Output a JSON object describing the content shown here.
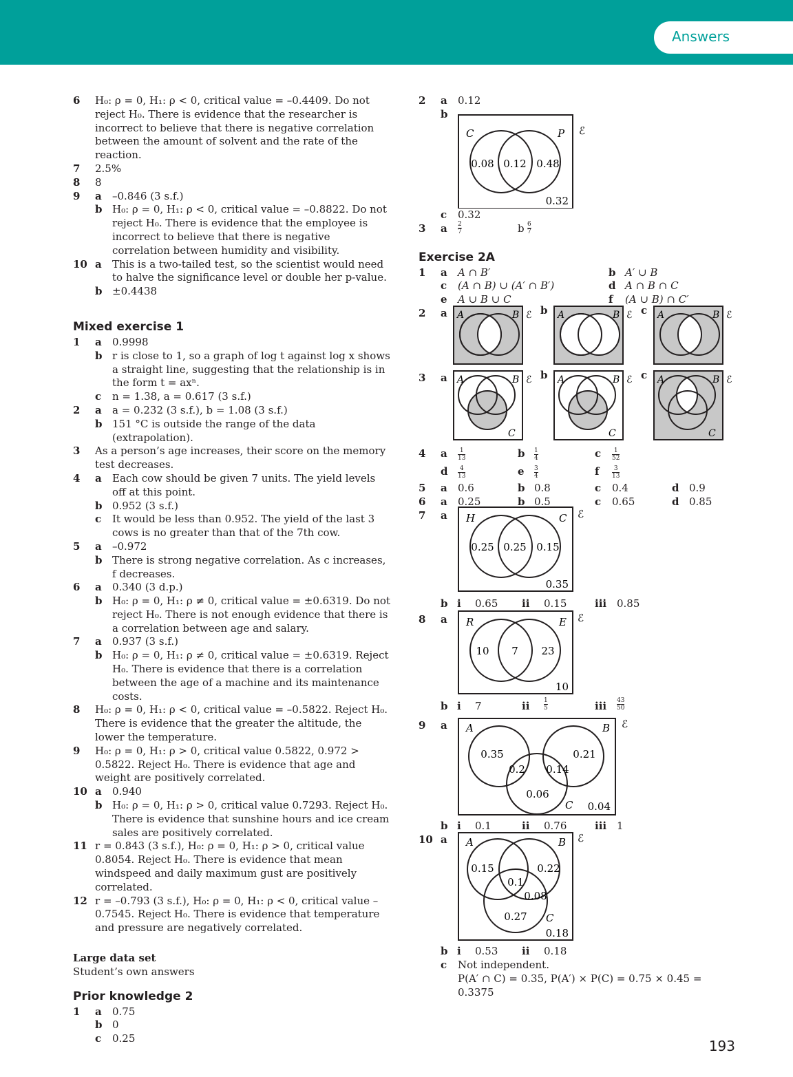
{
  "header": {
    "tab_label": "Answers",
    "band_color": "#00a09a"
  },
  "page_number": "193",
  "left": {
    "q6": "H₀: ρ = 0, H₁: ρ < 0, critical value = –0.4409. Do not reject H₀. There is evidence that the researcher is incorrect to believe that there is negative correlation between the amount of solvent and the rate of the reaction.",
    "q7": "2.5%",
    "q8": "8",
    "q9a": "–0.846 (3 s.f.)",
    "q9b": "H₀: ρ = 0, H₁: ρ < 0, critical value = –0.8822. Do not reject H₀. There is evidence that the employee is incorrect to believe that there is negative correlation between humidity and visibility.",
    "q10a": "This is a two-tailed test, so the scientist would need to halve the significance level or double her p-value.",
    "q10b": "±0.4438",
    "mixed_title": "Mixed exercise 1",
    "m1a": "0.9998",
    "m1b": "r is close to 1, so a graph of log t against log x shows a straight line, suggesting that the relationship is in the form t = axⁿ.",
    "m1c": "n = 1.38, a = 0.617 (3 s.f.)",
    "m2a": "a = 0.232 (3 s.f.), b = 1.08 (3 s.f.)",
    "m2b": "151 °C is outside the range of the data (extrapolation).",
    "m3": "As a person’s age increases, their score on the memory test decreases.",
    "m4a": "Each cow should be given 7 units. The yield levels off at this point.",
    "m4b": "0.952 (3 s.f.)",
    "m4c": "It would be less than 0.952. The yield of the last 3 cows is no greater than that of the 7th cow.",
    "m5a": "–0.972",
    "m5b": "There is strong negative correlation. As c increases, f decreases.",
    "m6a": "0.340 (3 d.p.)",
    "m6b": "H₀: ρ = 0, H₁: ρ ≠ 0, critical value = ±0.6319. Do not reject H₀. There is not enough evidence that there is a correlation between age and salary.",
    "m7a": "0.937 (3 s.f.)",
    "m7b": "H₀: ρ = 0, H₁: ρ ≠ 0, critical value = ±0.6319. Reject H₀. There is evidence that there is a correlation between the age of a machine and its maintenance costs.",
    "m8": "H₀: ρ = 0, H₁: ρ < 0, critical value = –0.5822. Reject H₀. There is evidence that the greater the altitude, the lower the temperature.",
    "m9": "H₀: ρ = 0, H₁: ρ > 0, critical value 0.5822, 0.972 > 0.5822. Reject H₀. There is evidence that age and weight are positively correlated.",
    "m10a": "0.940",
    "m10b": "H₀: ρ = 0, H₁: ρ > 0, critical value 0.7293. Reject H₀. There is evidence that sunshine hours and ice cream sales are positively correlated.",
    "m11": "r = 0.843 (3 s.f.), H₀: ρ = 0, H₁: ρ > 0, critical value 0.8054. Reject H₀. There is evidence that mean windspeed and daily maximum gust are positively correlated.",
    "m12": "r = –0.793 (3 s.f.), H₀: ρ = 0, H₁: ρ < 0, critical value –0.7545. Reject H₀. There is evidence that temperature and pressure are negatively correlated.",
    "lds_title": "Large data set",
    "lds_text": "Student’s own answers",
    "prior_title": "Prior knowledge 2",
    "p1a": "0.75",
    "p1b": "0",
    "p1c": "0.25"
  },
  "right": {
    "q2a": "0.12",
    "q2c": "0.32",
    "q3a_num": "2",
    "q3a_den": "7",
    "q3b_label": "b",
    "q3b_num": "6",
    "q3b_den": "7",
    "ex2a_title": "Exercise 2A",
    "e1a": "A ∩ B′",
    "e1b": "A′ ∪ B",
    "e1c": "(A ∩ B) ∪ (A′ ∩ B′)",
    "e1d": "A ∩ B ∩ C",
    "e1e": "A ∪ B ∪ C",
    "e1f": "(A ∪ B) ∩ C′",
    "e4": [
      {
        "label": "a",
        "num": "1",
        "den": "13"
      },
      {
        "label": "b",
        "num": "1",
        "den": "4"
      },
      {
        "label": "c",
        "num": "1",
        "den": "52"
      },
      {
        "label": "d",
        "num": "4",
        "den": "13"
      },
      {
        "label": "e",
        "num": "3",
        "den": "4"
      },
      {
        "label": "f",
        "num": "3",
        "den": "13"
      }
    ],
    "e5": [
      "0.6",
      "0.8",
      "0.4",
      "0.9"
    ],
    "e6": [
      "0.25",
      "0.5",
      "0.65",
      "0.85"
    ],
    "e7b": [
      "0.65",
      "0.15",
      "0.85"
    ],
    "e8b_i": "7",
    "e8b_ii_num": "1",
    "e8b_ii_den": "5",
    "e8b_iii_num": "43",
    "e8b_iii_den": "50",
    "e9b": [
      "0.1",
      "0.76",
      "1"
    ],
    "e10b": [
      "0.53",
      "0.18"
    ],
    "e10c": "Not independent.",
    "e10c2": "P(A′ ∩ C) = 0.35, P(A′) × P(C) = 0.75 × 0.45 =",
    "e10c3": "0.3375"
  },
  "venn": {
    "universal": "ℰ",
    "q2": {
      "set1": "C",
      "set2": "P",
      "only1": "0.08",
      "both": "0.12",
      "only2": "0.48",
      "outside": "0.32"
    },
    "e7": {
      "set1": "H",
      "set2": "C",
      "only1": "0.25",
      "both": "0.25",
      "only2": "0.15",
      "outside": "0.35"
    },
    "e8": {
      "set1": "R",
      "set2": "E",
      "only1": "10",
      "both": "7",
      "only2": "23",
      "outside": "10"
    },
    "e9": {
      "setA": "A",
      "setB": "B",
      "setC": "C",
      "a": "0.35",
      "b": "0.21",
      "ac": "0.2",
      "bc": "0.14",
      "c": "0.06",
      "outside": "0.04"
    },
    "e10": {
      "setA": "A",
      "setB": "B",
      "setC": "C",
      "a": "0.15",
      "b": "0.22",
      "abc": "0.1",
      "bc": "0.08",
      "c": "0.27",
      "outside": "0.18"
    },
    "shade_color": "#c8c8c8"
  }
}
